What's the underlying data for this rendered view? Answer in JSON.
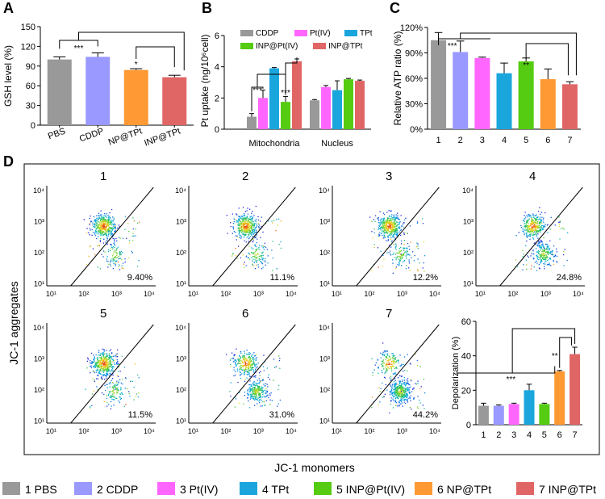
{
  "panels": [
    {
      "letter": "A"
    },
    {
      "letter": "B"
    },
    {
      "letter": "C"
    },
    {
      "letter": "D"
    }
  ],
  "colors": {
    "PBS": "#999999",
    "CDDP": "#9999ff",
    "PtIV": "#ff66ff",
    "TPt": "#1aa6dd",
    "INP_PtIV": "#55cc11",
    "NP_TPt": "#ff9933",
    "INP_TPt": "#e06666"
  },
  "chart_data": [
    {
      "id": "A",
      "type": "bar",
      "title": "",
      "ylabel": "GSH level (%)",
      "xlabel": "",
      "ylim": [
        0,
        150
      ],
      "yticks": [
        "0",
        "30",
        "60",
        "90",
        "120",
        "150"
      ],
      "categories": [
        "PBS",
        "CDDP",
        "NP@TPt",
        "INP@TPt"
      ],
      "values": [
        100,
        104,
        84,
        73
      ],
      "errors": [
        4,
        6,
        2,
        3
      ],
      "colors": [
        "#999999",
        "#9999ff",
        "#ff9933",
        "#e06666"
      ],
      "annotations": [
        {
          "text": "***",
          "between": [
            "PBS",
            "CDDP"
          ]
        },
        {
          "text": "*",
          "on": "NP@TPt"
        }
      ]
    },
    {
      "id": "B",
      "type": "bar",
      "title": "",
      "ylabel": "Pt uptake (ng/10⁶cell)",
      "xlabel": "",
      "ylim": [
        0,
        6
      ],
      "yticks": [
        "0",
        "2",
        "4",
        "6"
      ],
      "categories": [
        "Mitochondria",
        "Nucleus"
      ],
      "legend": [
        "CDDP",
        "Pt(IV)",
        "TPt",
        "INP@Pt(IV)",
        "INP@TPt"
      ],
      "series": [
        {
          "name": "CDDP",
          "color": "#999999",
          "values": [
            0.8,
            1.85
          ],
          "errors": [
            0.2,
            0.05
          ]
        },
        {
          "name": "Pt(IV)",
          "color": "#ff66ff",
          "values": [
            2.0,
            2.7
          ],
          "errors": [
            0.5,
            0.1
          ]
        },
        {
          "name": "TPt",
          "color": "#1aa6dd",
          "values": [
            3.9,
            2.5
          ],
          "errors": [
            0.05,
            0.6
          ]
        },
        {
          "name": "INP@Pt(IV)",
          "color": "#55cc11",
          "values": [
            1.75,
            3.2
          ],
          "errors": [
            0.35,
            0.05
          ]
        },
        {
          "name": "INP@TPt",
          "color": "#e06666",
          "values": [
            4.35,
            3.1
          ],
          "errors": [
            0.15,
            0.05
          ]
        }
      ],
      "annotations": [
        {
          "text": "***",
          "group": "Mitochondria",
          "between": [
            "CDDP",
            "Pt(IV)"
          ]
        },
        {
          "text": "***",
          "group": "Mitochondria",
          "between": [
            "INP@Pt(IV)",
            "INP@TPt"
          ]
        }
      ]
    },
    {
      "id": "C",
      "type": "bar",
      "title": "",
      "ylabel": "Relative ATP ratio (%)",
      "xlabel": "",
      "ylim": [
        0,
        120
      ],
      "yticks": [
        "0%",
        "30%",
        "60%",
        "90%",
        "120%"
      ],
      "categories": [
        "1",
        "2",
        "3",
        "4",
        "5",
        "6",
        "7"
      ],
      "values": [
        105,
        91,
        84,
        66,
        80,
        59,
        53
      ],
      "errors": [
        9,
        13,
        1,
        12,
        4,
        12,
        3
      ],
      "colors": [
        "#999999",
        "#9999ff",
        "#ff66ff",
        "#1aa6dd",
        "#55cc11",
        "#ff9933",
        "#e06666"
      ],
      "annotations": [
        {
          "text": "***",
          "between": [
            "1",
            "3"
          ]
        },
        {
          "text": "**",
          "on": "5"
        }
      ]
    },
    {
      "id": "D",
      "type": "scatter",
      "xlabel": "JC-1 monomers",
      "ylabel": "JC-1 aggregates",
      "xticks": [
        "10¹",
        "10²",
        "10³",
        "10⁴"
      ],
      "yticks": [
        "10¹",
        "10²",
        "10³",
        "10⁴"
      ],
      "plots": [
        {
          "label": "1",
          "percent": "9.40%",
          "lower_fraction": 0.094
        },
        {
          "label": "2",
          "percent": "11.1%",
          "lower_fraction": 0.111
        },
        {
          "label": "3",
          "percent": "12.2%",
          "lower_fraction": 0.122
        },
        {
          "label": "4",
          "percent": "24.8%",
          "lower_fraction": 0.248
        },
        {
          "label": "5",
          "percent": "11.5%",
          "lower_fraction": 0.115
        },
        {
          "label": "6",
          "percent": "31.0%",
          "lower_fraction": 0.31
        },
        {
          "label": "7",
          "percent": "44.2%",
          "lower_fraction": 0.442
        }
      ]
    },
    {
      "id": "D-depolarization",
      "type": "bar",
      "title": "",
      "ylabel": "Depolarization (%)",
      "xlabel": "",
      "ylim": [
        0,
        60
      ],
      "yticks": [
        "0",
        "20",
        "40",
        "60"
      ],
      "categories": [
        "1",
        "2",
        "3",
        "4",
        "5",
        "6",
        "7"
      ],
      "values": [
        11,
        11,
        12,
        20,
        12,
        31,
        41
      ],
      "errors": [
        1.5,
        0.5,
        0.5,
        3.5,
        0.5,
        0.5,
        4
      ],
      "colors": [
        "#999999",
        "#9999ff",
        "#ff66ff",
        "#1aa6dd",
        "#55cc11",
        "#ff9933",
        "#e06666"
      ],
      "annotations": [
        {
          "text": "***",
          "between": [
            "1",
            "6"
          ]
        },
        {
          "text": "**",
          "on": "6"
        }
      ]
    }
  ],
  "legend": [
    {
      "label": "1 PBS",
      "color": "#999999"
    },
    {
      "label": "2 CDDP",
      "color": "#9999ff"
    },
    {
      "label": "3 Pt(IV)",
      "color": "#ff66ff"
    },
    {
      "label": "4 TPt",
      "color": "#1aa6dd"
    },
    {
      "label": "5 INP@Pt(IV)",
      "color": "#55cc11"
    },
    {
      "label": "6 NP@TPt",
      "color": "#ff9933"
    },
    {
      "label": "7 INP@TPt",
      "color": "#e06666"
    }
  ]
}
